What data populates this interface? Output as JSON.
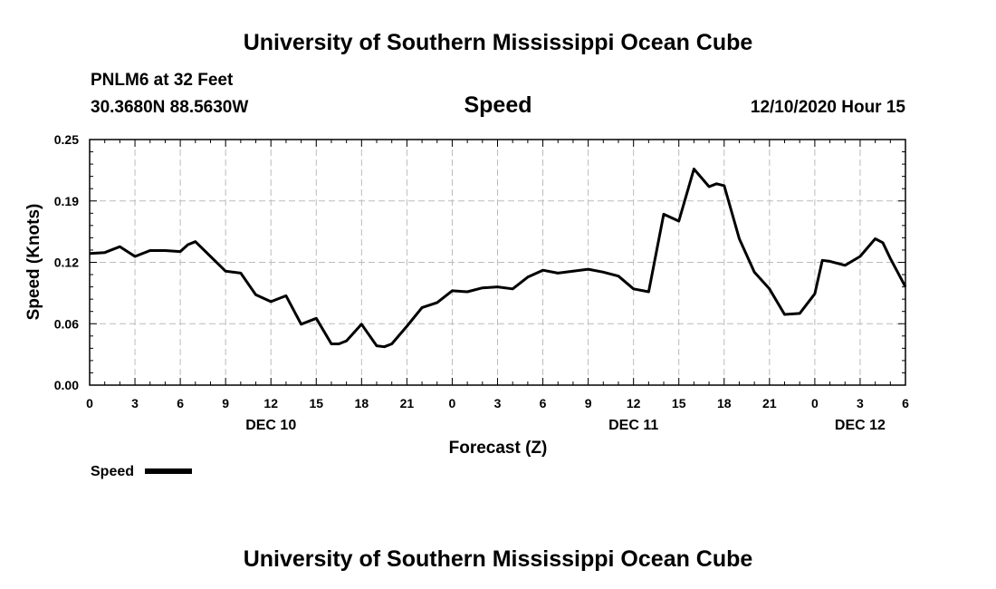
{
  "header": {
    "title": "University of Southern Mississippi Ocean Cube",
    "station": "PNLM6 at 32 Feet",
    "location": "30.3680N 88.5630W",
    "variable": "Speed",
    "issued": "12/10/2020 Hour 15"
  },
  "footer": {
    "title": "University of Southern Mississippi Ocean Cube"
  },
  "legend": {
    "label": "Speed"
  },
  "chart_data": {
    "type": "line",
    "title": "Speed",
    "xlabel": "Forecast (Z)",
    "ylabel": "Speed (Knots)",
    "xlim": [
      0,
      54
    ],
    "ylim": [
      0,
      0.25
    ],
    "yticks": [
      "0.00",
      "0.06",
      "0.12",
      "0.19",
      "0.25"
    ],
    "ytick_values": [
      0,
      0.0625,
      0.125,
      0.1875,
      0.25
    ],
    "xticks": [
      {
        "x": 0,
        "label": "0"
      },
      {
        "x": 3,
        "label": "3"
      },
      {
        "x": 6,
        "label": "6"
      },
      {
        "x": 9,
        "label": "9"
      },
      {
        "x": 12,
        "label": "12"
      },
      {
        "x": 15,
        "label": "15"
      },
      {
        "x": 18,
        "label": "18"
      },
      {
        "x": 21,
        "label": "21"
      },
      {
        "x": 24,
        "label": "0"
      },
      {
        "x": 27,
        "label": "3"
      },
      {
        "x": 30,
        "label": "6"
      },
      {
        "x": 33,
        "label": "9"
      },
      {
        "x": 36,
        "label": "12"
      },
      {
        "x": 39,
        "label": "15"
      },
      {
        "x": 42,
        "label": "18"
      },
      {
        "x": 45,
        "label": "21"
      },
      {
        "x": 48,
        "label": "0"
      },
      {
        "x": 51,
        "label": "3"
      },
      {
        "x": 54,
        "label": "6"
      }
    ],
    "day_labels": [
      {
        "x": 12,
        "label": "DEC 10"
      },
      {
        "x": 36,
        "label": "DEC 11"
      },
      {
        "x": 51,
        "label": "DEC 12"
      }
    ],
    "grid": true,
    "legend_position": "bottom-left",
    "series": [
      {
        "name": "Speed",
        "x": [
          0,
          1,
          2,
          3,
          4,
          5,
          6,
          6.5,
          7,
          8,
          9,
          10,
          11,
          12,
          13,
          14,
          15,
          16,
          16.5,
          17,
          18,
          19,
          19.5,
          20,
          21,
          22,
          23,
          24,
          25,
          26,
          27,
          28,
          29,
          30,
          31,
          32,
          33,
          34,
          35,
          36,
          37,
          38,
          39,
          40,
          41,
          41.5,
          42,
          43,
          44,
          45,
          46,
          47,
          48,
          48.5,
          49,
          50,
          51,
          52,
          52.5,
          53,
          54
        ],
        "values": [
          0.134,
          0.135,
          0.141,
          0.131,
          0.137,
          0.137,
          0.136,
          0.143,
          0.146,
          0.131,
          0.116,
          0.114,
          0.092,
          0.085,
          0.091,
          0.062,
          0.068,
          0.042,
          0.042,
          0.045,
          0.062,
          0.04,
          0.039,
          0.042,
          0.06,
          0.079,
          0.084,
          0.096,
          0.095,
          0.099,
          0.1,
          0.098,
          0.11,
          0.117,
          0.114,
          0.116,
          0.118,
          0.115,
          0.111,
          0.098,
          0.095,
          0.174,
          0.167,
          0.22,
          0.202,
          0.205,
          0.203,
          0.149,
          0.115,
          0.098,
          0.072,
          0.073,
          0.093,
          0.127,
          0.126,
          0.122,
          0.131,
          0.149,
          0.145,
          0.129,
          0.1
        ]
      }
    ]
  }
}
